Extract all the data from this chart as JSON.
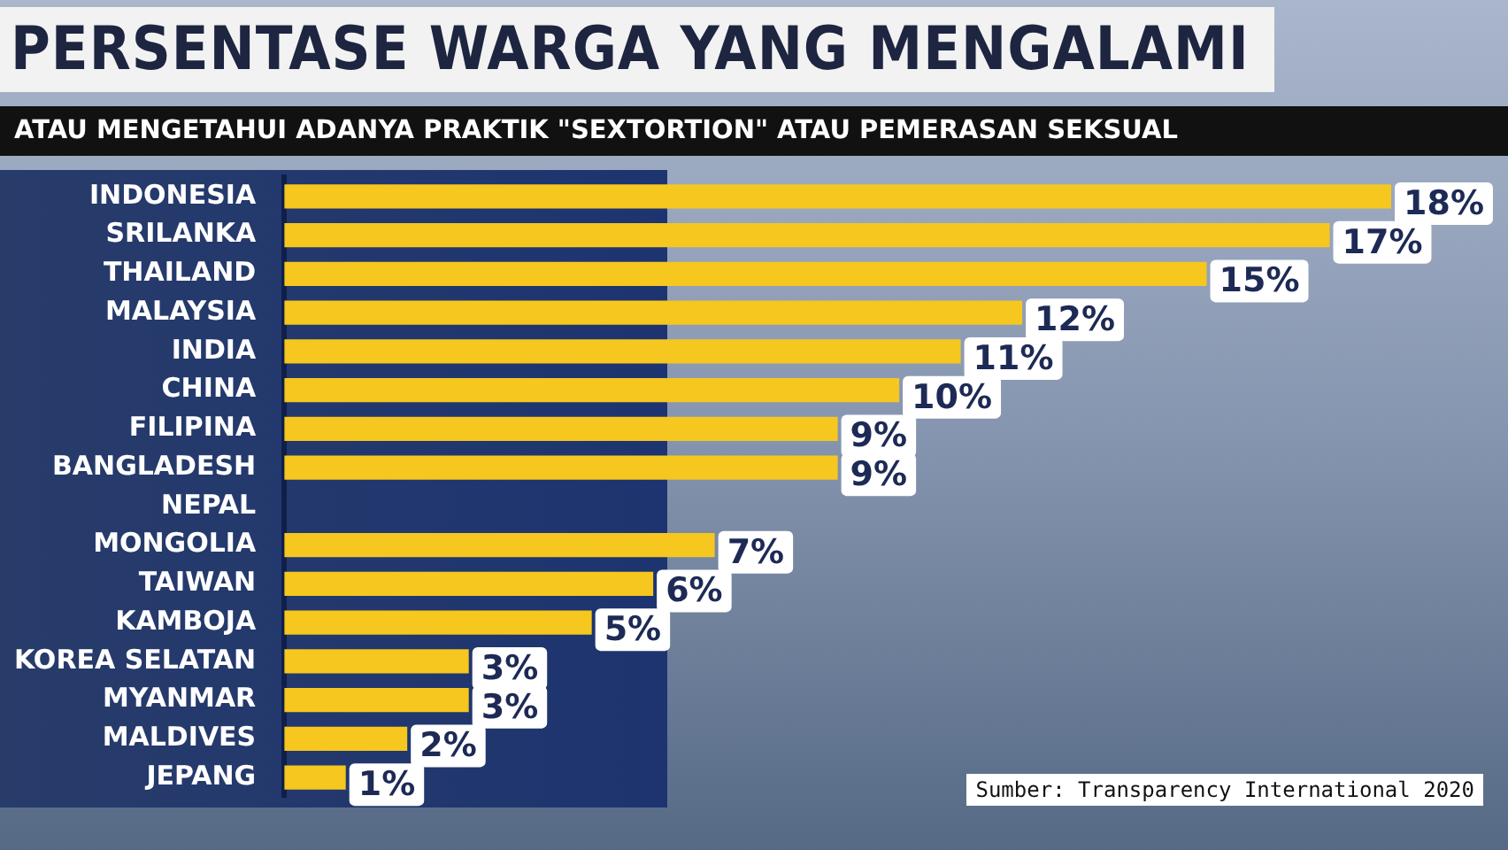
{
  "chart_data": {
    "type": "bar",
    "orientation": "horizontal",
    "title": "PERSENTASE WARGA YANG MENGALAMI",
    "subtitle": "ATAU MENGETAHUI ADANYA PRAKTIK \"SEXTORTION\" ATAU PEMERASAN SEKSUAL",
    "categories": [
      "INDONESIA",
      "SRILANKA",
      "THAILAND",
      "MALAYSIA",
      "INDIA",
      "CHINA",
      "FILIPINA",
      "BANGLADESH",
      "NEPAL",
      "MONGOLIA",
      "TAIWAN",
      "KAMBOJA",
      "KOREA SELATAN",
      "MYANMAR",
      "MALDIVES",
      "JEPANG"
    ],
    "values": [
      18,
      17,
      15,
      12,
      11,
      10,
      9,
      9,
      null,
      7,
      6,
      5,
      3,
      3,
      2,
      1
    ],
    "value_labels": [
      "18%",
      "17%",
      "15%",
      "12%",
      "11%",
      "10%",
      "9%",
      "9%",
      null,
      "7%",
      "6%",
      "5%",
      "3%",
      "3%",
      "2%",
      "1%"
    ],
    "color": "#f5c71f",
    "annotations": [
      "Sumber: Transparency International 2020"
    ]
  }
}
